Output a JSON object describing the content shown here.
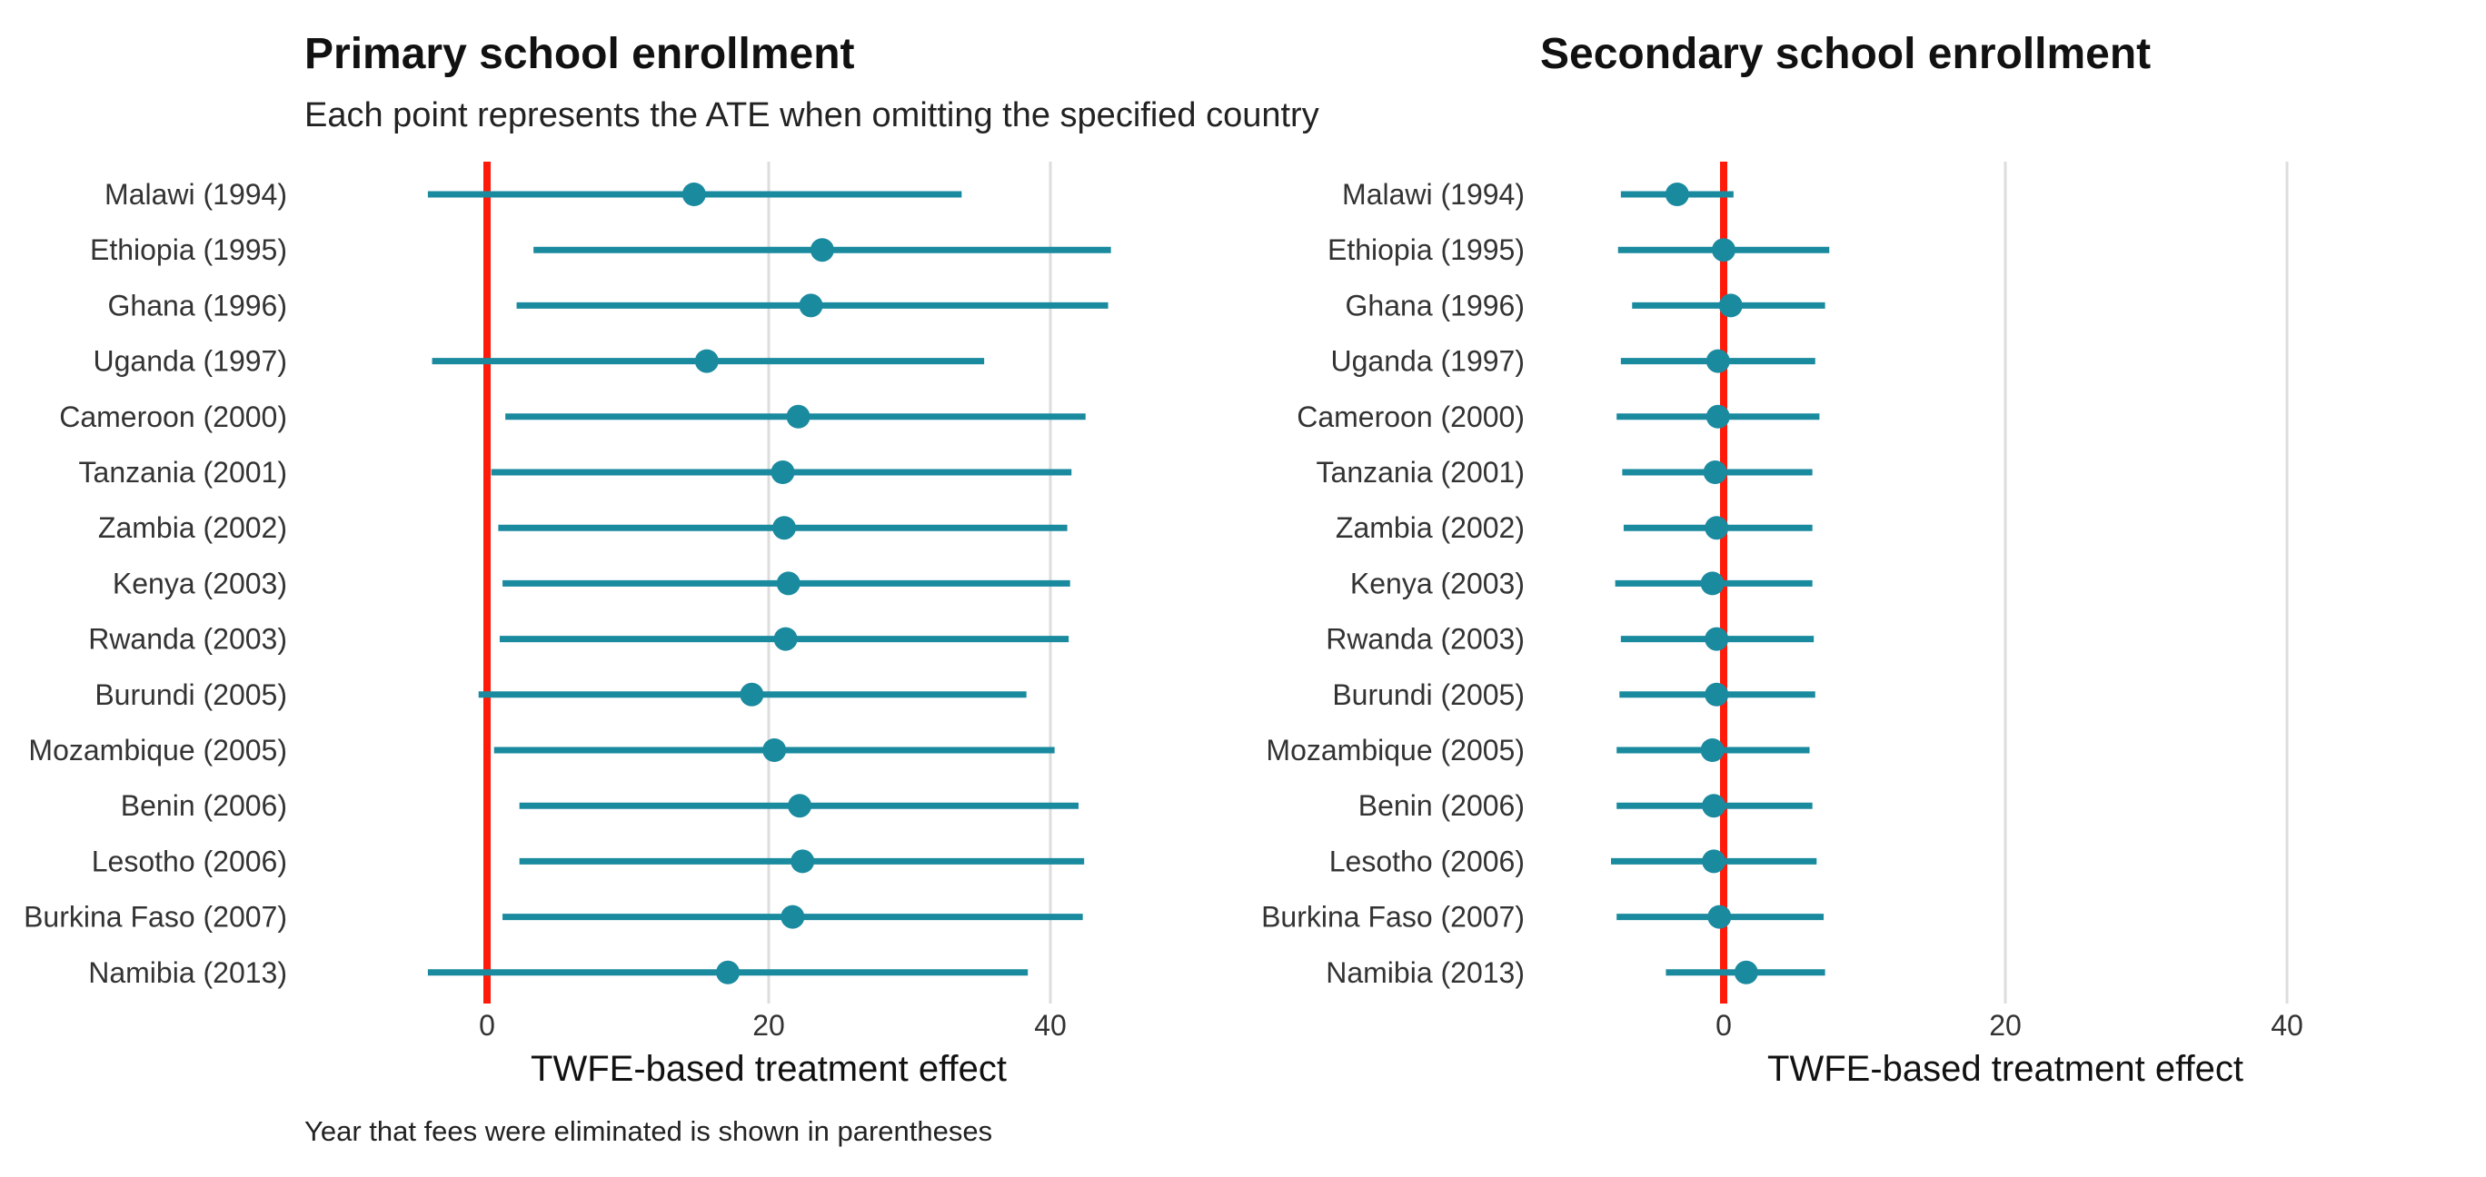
{
  "subtitle": "Each point represents the ATE when omitting the specified country",
  "caption": "Year that fees were eliminated is shown in parentheses",
  "colors": {
    "estimate": "#1a8a9f",
    "zero_line": "#ff1a0a",
    "grid": "#dddddd",
    "label": "#333333"
  },
  "chart_data": [
    {
      "type": "forest",
      "title": "Primary school enrollment",
      "xlabel": "TWFE-based treatment effect",
      "ylabel": "",
      "xticks": [
        0,
        20,
        40
      ],
      "reference_line": 0,
      "categories": [
        "Malawi (1994)",
        "Ethiopia (1995)",
        "Ghana (1996)",
        "Uganda (1997)",
        "Cameroon (2000)",
        "Tanzania (2001)",
        "Zambia (2002)",
        "Kenya (2003)",
        "Rwanda (2003)",
        "Burundi (2005)",
        "Mozambique (2005)",
        "Benin (2006)",
        "Lesotho (2006)",
        "Burkina Faso (2007)",
        "Namibia (2013)"
      ],
      "estimate": [
        14.7,
        23.8,
        23.0,
        15.6,
        22.1,
        21.0,
        21.1,
        21.4,
        21.2,
        18.8,
        20.4,
        22.2,
        22.4,
        21.7,
        17.1
      ],
      "lower": [
        -4.2,
        3.3,
        2.1,
        -3.9,
        1.3,
        0.3,
        0.8,
        1.1,
        0.9,
        -0.6,
        0.5,
        2.3,
        2.3,
        1.1,
        -4.2
      ],
      "upper": [
        33.7,
        44.3,
        44.1,
        35.3,
        42.5,
        41.5,
        41.2,
        41.4,
        41.3,
        38.3,
        40.3,
        42.0,
        42.4,
        42.3,
        38.4
      ]
    },
    {
      "type": "forest",
      "title": "Secondary school enrollment",
      "xlabel": "TWFE-based treatment effect",
      "ylabel": "",
      "xticks": [
        0,
        20,
        40
      ],
      "reference_line": 0,
      "categories": [
        "Malawi (1994)",
        "Ethiopia (1995)",
        "Ghana (1996)",
        "Uganda (1997)",
        "Cameroon (2000)",
        "Tanzania (2001)",
        "Zambia (2002)",
        "Kenya (2003)",
        "Rwanda (2003)",
        "Burundi (2005)",
        "Mozambique (2005)",
        "Benin (2006)",
        "Lesotho (2006)",
        "Burkina Faso (2007)",
        "Namibia (2013)"
      ],
      "estimate": [
        -3.3,
        0.0,
        0.5,
        -0.4,
        -0.4,
        -0.6,
        -0.5,
        -0.8,
        -0.5,
        -0.5,
        -0.8,
        -0.7,
        -0.7,
        -0.3,
        1.6
      ],
      "lower": [
        -7.3,
        -7.5,
        -6.5,
        -7.3,
        -7.6,
        -7.2,
        -7.1,
        -7.7,
        -7.3,
        -7.4,
        -7.6,
        -7.6,
        -8.0,
        -7.6,
        -4.1
      ],
      "upper": [
        0.7,
        7.5,
        7.2,
        6.5,
        6.8,
        6.3,
        6.3,
        6.3,
        6.4,
        6.5,
        6.1,
        6.3,
        6.6,
        7.1,
        7.2
      ]
    }
  ]
}
